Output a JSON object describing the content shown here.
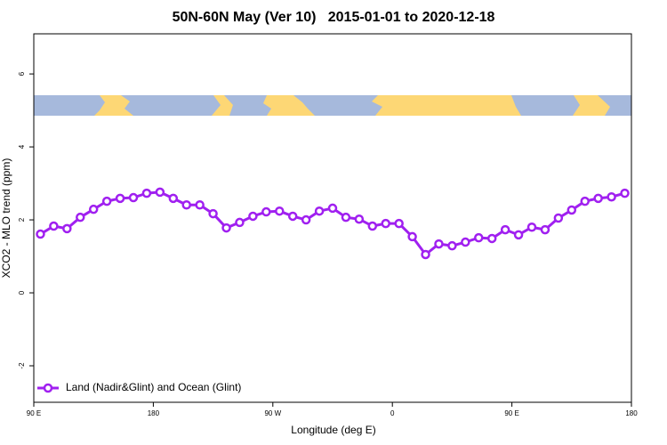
{
  "chart_data": {
    "type": "line",
    "title": "50N-60N May (Ver 10)   2015-01-01 to 2020-12-18",
    "x_label": "Longitude (deg E)",
    "y_label": "XCO2 - MLO trend (ppm)",
    "xlim": [
      90,
      540
    ],
    "xticks": [
      {
        "value": 90,
        "label": "90 E"
      },
      180,
      {
        "value": 270,
        "label": "90 W"
      },
      {
        "value": 360,
        "label": "0"
      },
      {
        "value": 450,
        "label": "90 E"
      },
      {
        "value": 540,
        "label": "180"
      }
    ],
    "ylim": [
      -3,
      7.1
    ],
    "yticks": [
      -2,
      0,
      2,
      4,
      6
    ],
    "legend_position": "bottom-left",
    "x": [
      95,
      105,
      115,
      125,
      135,
      145,
      155,
      165,
      175,
      185,
      195,
      205,
      215,
      225,
      235,
      245,
      255,
      265,
      275,
      285,
      295,
      305,
      315,
      325,
      335,
      345,
      355,
      365,
      375,
      385,
      395,
      405,
      415,
      425,
      435,
      445,
      455,
      465,
      475,
      485,
      495,
      505,
      515,
      525,
      535
    ],
    "series": [
      {
        "name": "Land (Nadir&Glint) and Ocean (Glint)",
        "color": "#a020f0",
        "values": [
          1.61,
          1.83,
          1.76,
          2.07,
          2.29,
          2.51,
          2.59,
          2.61,
          2.73,
          2.76,
          2.59,
          2.41,
          2.41,
          2.17,
          1.78,
          1.93,
          2.1,
          2.22,
          2.24,
          2.1,
          2.0,
          2.24,
          2.32,
          2.07,
          2.02,
          1.83,
          1.9,
          1.9,
          1.54,
          1.05,
          1.34,
          1.29,
          1.39,
          1.51,
          1.49,
          1.73,
          1.59,
          1.8,
          1.73,
          2.05,
          2.27,
          2.51,
          2.59,
          2.63,
          2.73
        ]
      }
    ]
  }
}
